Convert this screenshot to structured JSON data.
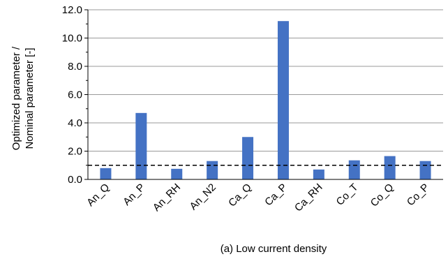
{
  "chart_data": {
    "type": "bar",
    "categories": [
      "An_Q",
      "An_P",
      "An_RH",
      "An_N2",
      "Ca_Q",
      "Ca_P",
      "Ca_RH",
      "Co_T",
      "Co_Q",
      "Co_P"
    ],
    "values": [
      0.8,
      4.7,
      0.75,
      1.3,
      3.0,
      11.2,
      0.7,
      1.35,
      1.65,
      1.3
    ],
    "ylabel_line1": "Optimized parameter /",
    "ylabel_line2": "Nominal parameter [-]",
    "caption": "(a) Low current density",
    "ylim": [
      0,
      12
    ],
    "yticks": [
      0,
      2,
      4,
      6,
      8,
      10,
      12
    ],
    "ytick_labels": [
      "0.0",
      "2.0",
      "4.0",
      "6.0",
      "8.0",
      "10.0",
      "12.0"
    ],
    "reference_line": 1.0,
    "grid": true,
    "bar_color": "#4472c4"
  }
}
